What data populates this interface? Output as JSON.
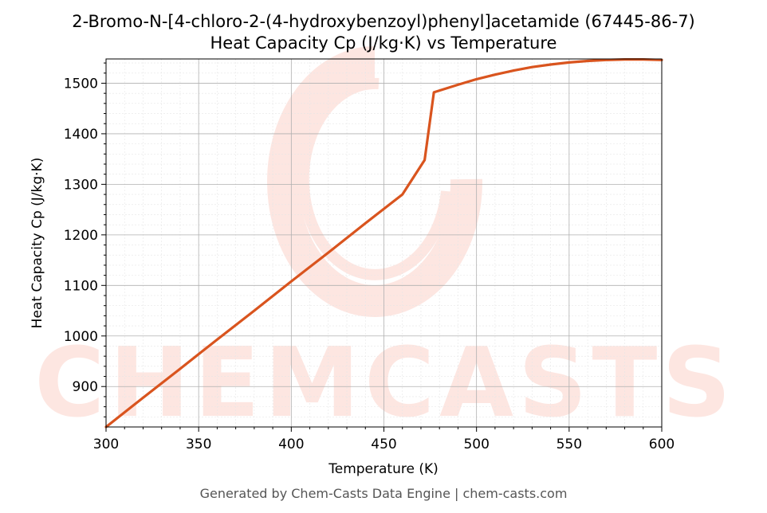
{
  "chart_data": {
    "type": "line",
    "title": "2-Bromo-N-[4-chloro-2-(4-hydroxybenzoyl)phenyl]acetamide (67445-86-7)",
    "subtitle": "Heat Capacity Cp (J/kg·K) vs Temperature",
    "xlabel": "Temperature (K)",
    "ylabel": "Heat Capacity Cp (J/kg·K)",
    "xlim": [
      300,
      600
    ],
    "ylim": [
      820,
      1548
    ],
    "x_ticks": [
      300,
      350,
      400,
      450,
      500,
      550,
      600
    ],
    "y_ticks": [
      900,
      1000,
      1100,
      1200,
      1300,
      1400,
      1500
    ],
    "grid": true,
    "minor_grid": true,
    "line_color": "#d9541e",
    "series": [
      {
        "x": [
          300,
          320,
          340,
          360,
          380,
          400,
          420,
          440,
          460,
          472,
          477,
          490,
          500,
          510,
          520,
          530,
          540,
          550,
          560,
          570,
          580,
          590,
          600
        ],
        "values": [
          820,
          878,
          935,
          993,
          1050,
          1108,
          1165,
          1223,
          1280,
          1348,
          1482,
          1497,
          1508,
          1517,
          1525,
          1532,
          1537,
          1541,
          1544,
          1546,
          1547,
          1547,
          1546
        ]
      }
    ]
  },
  "watermark": {
    "text": "CHEMCASTS",
    "color": "#fde2dc"
  },
  "footer": "Generated by Chem-Casts Data Engine | chem-casts.com"
}
